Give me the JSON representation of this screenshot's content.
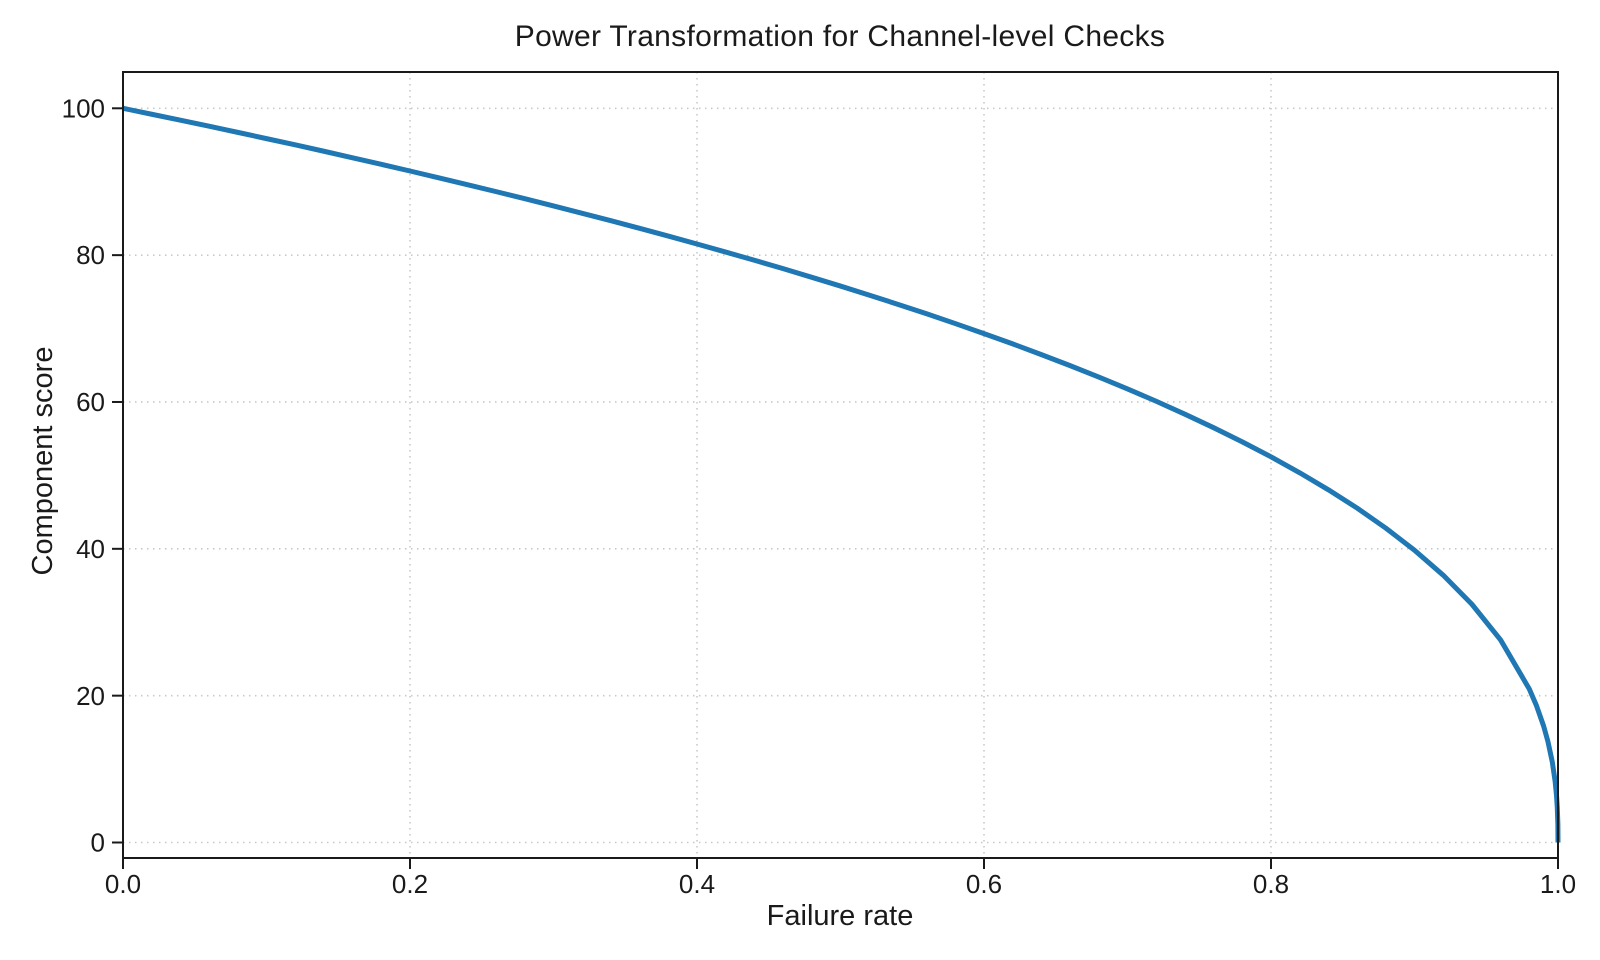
{
  "figure": {
    "background": "#ffffff"
  },
  "chart_data": {
    "type": "line",
    "title": "Power Transformation for Channel-level Checks",
    "xlabel": "Failure rate",
    "ylabel": "Component score",
    "xlim": [
      0.0,
      1.0
    ],
    "ylim": [
      -2,
      105
    ],
    "x_ticks": [
      0.0,
      0.2,
      0.4,
      0.6,
      0.8,
      1.0
    ],
    "x_tick_labels": [
      "0.0",
      "0.2",
      "0.4",
      "0.6",
      "0.8",
      "1.0"
    ],
    "y_ticks": [
      0,
      20,
      40,
      60,
      80,
      100
    ],
    "y_tick_labels": [
      "0",
      "20",
      "40",
      "60",
      "80",
      "100"
    ],
    "grid": "dotted, both axes, at major ticks",
    "legend": "none",
    "function": "score = 100 * (1 - failure_rate)^0.4",
    "series": [
      {
        "name": "power-transformation-curve",
        "color": "#1f77b4",
        "line_width": 5,
        "x": [
          0,
          0.02,
          0.04,
          0.06,
          0.08,
          0.1,
          0.12,
          0.14,
          0.16,
          0.18,
          0.2,
          0.22,
          0.24,
          0.26,
          0.28,
          0.3,
          0.32,
          0.34,
          0.36,
          0.38,
          0.4,
          0.42,
          0.44,
          0.46,
          0.48,
          0.5,
          0.52,
          0.54,
          0.56,
          0.58,
          0.6,
          0.62,
          0.64,
          0.66,
          0.68,
          0.7,
          0.72,
          0.74,
          0.76,
          0.78,
          0.8,
          0.82,
          0.84,
          0.86,
          0.88,
          0.9,
          0.92,
          0.94,
          0.96,
          0.98,
          0.985,
          0.99,
          0.993,
          0.996,
          0.998,
          0.999,
          0.9995,
          0.9999,
          1.0
        ],
        "y": [
          100,
          99.19,
          98.38,
          97.56,
          96.72,
          95.87,
          95.02,
          94.15,
          93.26,
          92.37,
          91.46,
          90.54,
          89.6,
          88.65,
          87.69,
          86.7,
          85.7,
          84.69,
          83.65,
          82.6,
          81.52,
          80.42,
          79.3,
          78.16,
          76.98,
          75.79,
          74.56,
          73.3,
          72.01,
          70.68,
          69.31,
          67.91,
          66.45,
          64.95,
          63.4,
          61.78,
          60.1,
          58.34,
          56.5,
          54.57,
          52.53,
          50.36,
          48.04,
          45.55,
          42.82,
          39.81,
          36.41,
          32.45,
          27.59,
          20.91,
          18.64,
          15.85,
          13.74,
          10.99,
          8.33,
          6.31,
          4.78,
          2.51,
          0
        ]
      }
    ],
    "colors": {
      "line": "#1f77b4",
      "grid": "#c9c9c9",
      "spine": "#1a1a1a",
      "text": "#1a1a1a",
      "background": "#ffffff"
    }
  }
}
